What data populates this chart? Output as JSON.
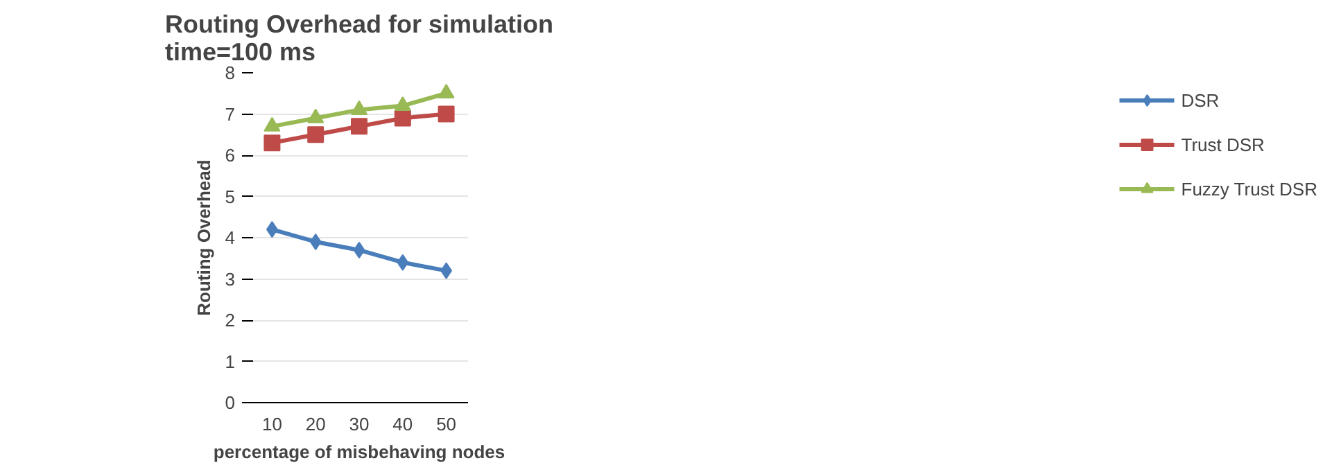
{
  "chart_data": {
    "type": "line",
    "title": "Routing Overhead for simulation\ntime=100 ms",
    "xlabel": "percentage of misbehaving nodes",
    "ylabel": "Routing Overhead",
    "categories": [
      "10",
      "20",
      "30",
      "40",
      "50"
    ],
    "series": [
      {
        "name": "DSR",
        "color": "#4a7ebb",
        "marker": "diamond",
        "values": [
          4.2,
          3.9,
          3.7,
          3.4,
          3.2
        ]
      },
      {
        "name": "Trust DSR",
        "color": "#be4b48",
        "marker": "square",
        "values": [
          6.3,
          6.5,
          6.7,
          6.9,
          7.0
        ]
      },
      {
        "name": "Fuzzy Trust DSR",
        "color": "#98b954",
        "marker": "triangle",
        "values": [
          6.7,
          6.9,
          7.1,
          7.2,
          7.5
        ]
      }
    ],
    "ylim": [
      0,
      8
    ],
    "yticks": [
      0,
      1,
      2,
      3,
      4,
      5,
      6,
      7,
      8
    ],
    "grid": "y",
    "legend": "right",
    "line_style": "solid"
  }
}
